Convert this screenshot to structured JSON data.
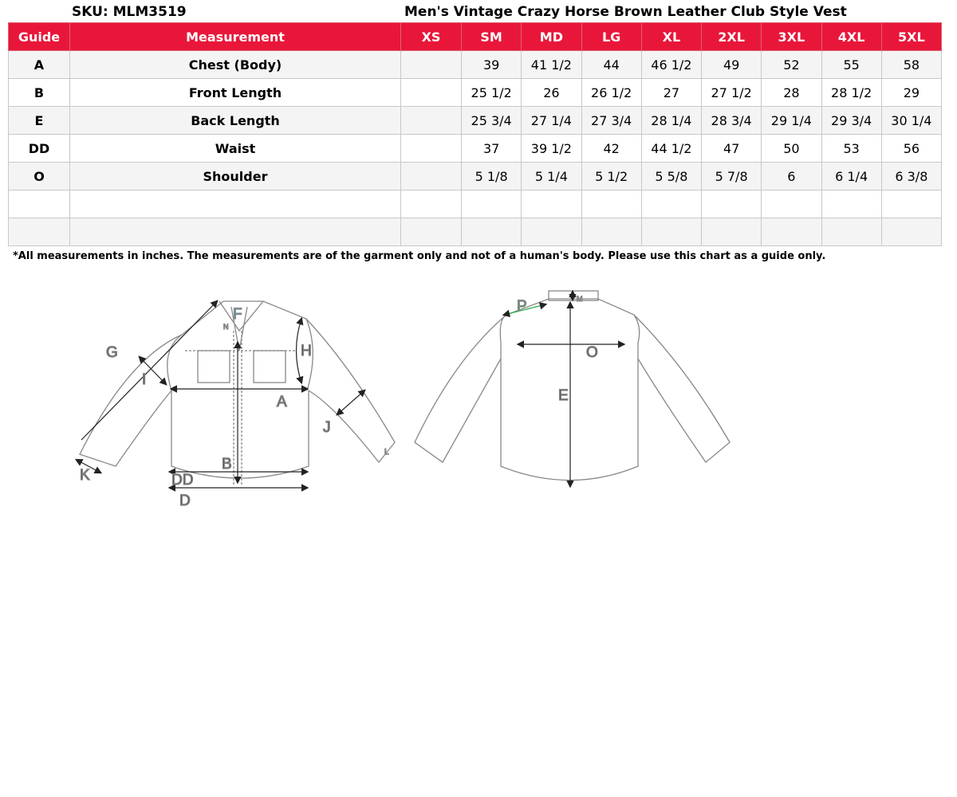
{
  "header": {
    "sku": "SKU: MLM3519",
    "title": "Men's Vintage Crazy Horse Brown Leather Club Style Vest"
  },
  "table": {
    "columns": [
      "Guide",
      "Measurement",
      "XS",
      "SM",
      "MD",
      "LG",
      "XL",
      "2XL",
      "3XL",
      "4XL",
      "5XL"
    ],
    "rows": [
      [
        "A",
        "Chest (Body)",
        "",
        "39",
        "41 1/2",
        "44",
        "46 1/2",
        "49",
        "52",
        "55",
        "58"
      ],
      [
        "B",
        "Front Length",
        "",
        "25 1/2",
        "26",
        "26 1/2",
        "27",
        "27 1/2",
        "28",
        "28 1/2",
        "29"
      ],
      [
        "E",
        "Back Length",
        "",
        "25 3/4",
        "27 1/4",
        "27 3/4",
        "28 1/4",
        "28 3/4",
        "29 1/4",
        "29 3/4",
        "30 1/4"
      ],
      [
        "DD",
        "Waist",
        "",
        "37",
        "39 1/2",
        "42",
        "44 1/2",
        "47",
        "50",
        "53",
        "56"
      ],
      [
        "O",
        "Shoulder",
        "",
        "5 1/8",
        "5 1/4",
        "5 1/2",
        "5 5/8",
        "5 7/8",
        "6",
        "6 1/4",
        "6 3/8"
      ],
      [
        "",
        "",
        "",
        "",
        "",
        "",
        "",
        "",
        "",
        "",
        ""
      ],
      [
        "",
        "",
        "",
        "",
        "",
        "",
        "",
        "",
        "",
        "",
        ""
      ]
    ]
  },
  "note": "*All measurements in inches. The measurements are of the garment only and not of a human's body. Please use this chart as a guide only.",
  "diagram": {
    "front_labels": {
      "F": "F",
      "N": "N",
      "G": "G",
      "H": "H",
      "I": "I",
      "A": "A",
      "J": "J",
      "K": "K",
      "L": "L",
      "B": "B",
      "DD": "DD",
      "D": "D"
    },
    "back_labels": {
      "P": "P",
      "M": "M",
      "O": "O",
      "E": "E"
    },
    "colors": {
      "accent": "#e8173a",
      "collar": "#29a8e0",
      "shoulder": "#22b04a"
    }
  }
}
